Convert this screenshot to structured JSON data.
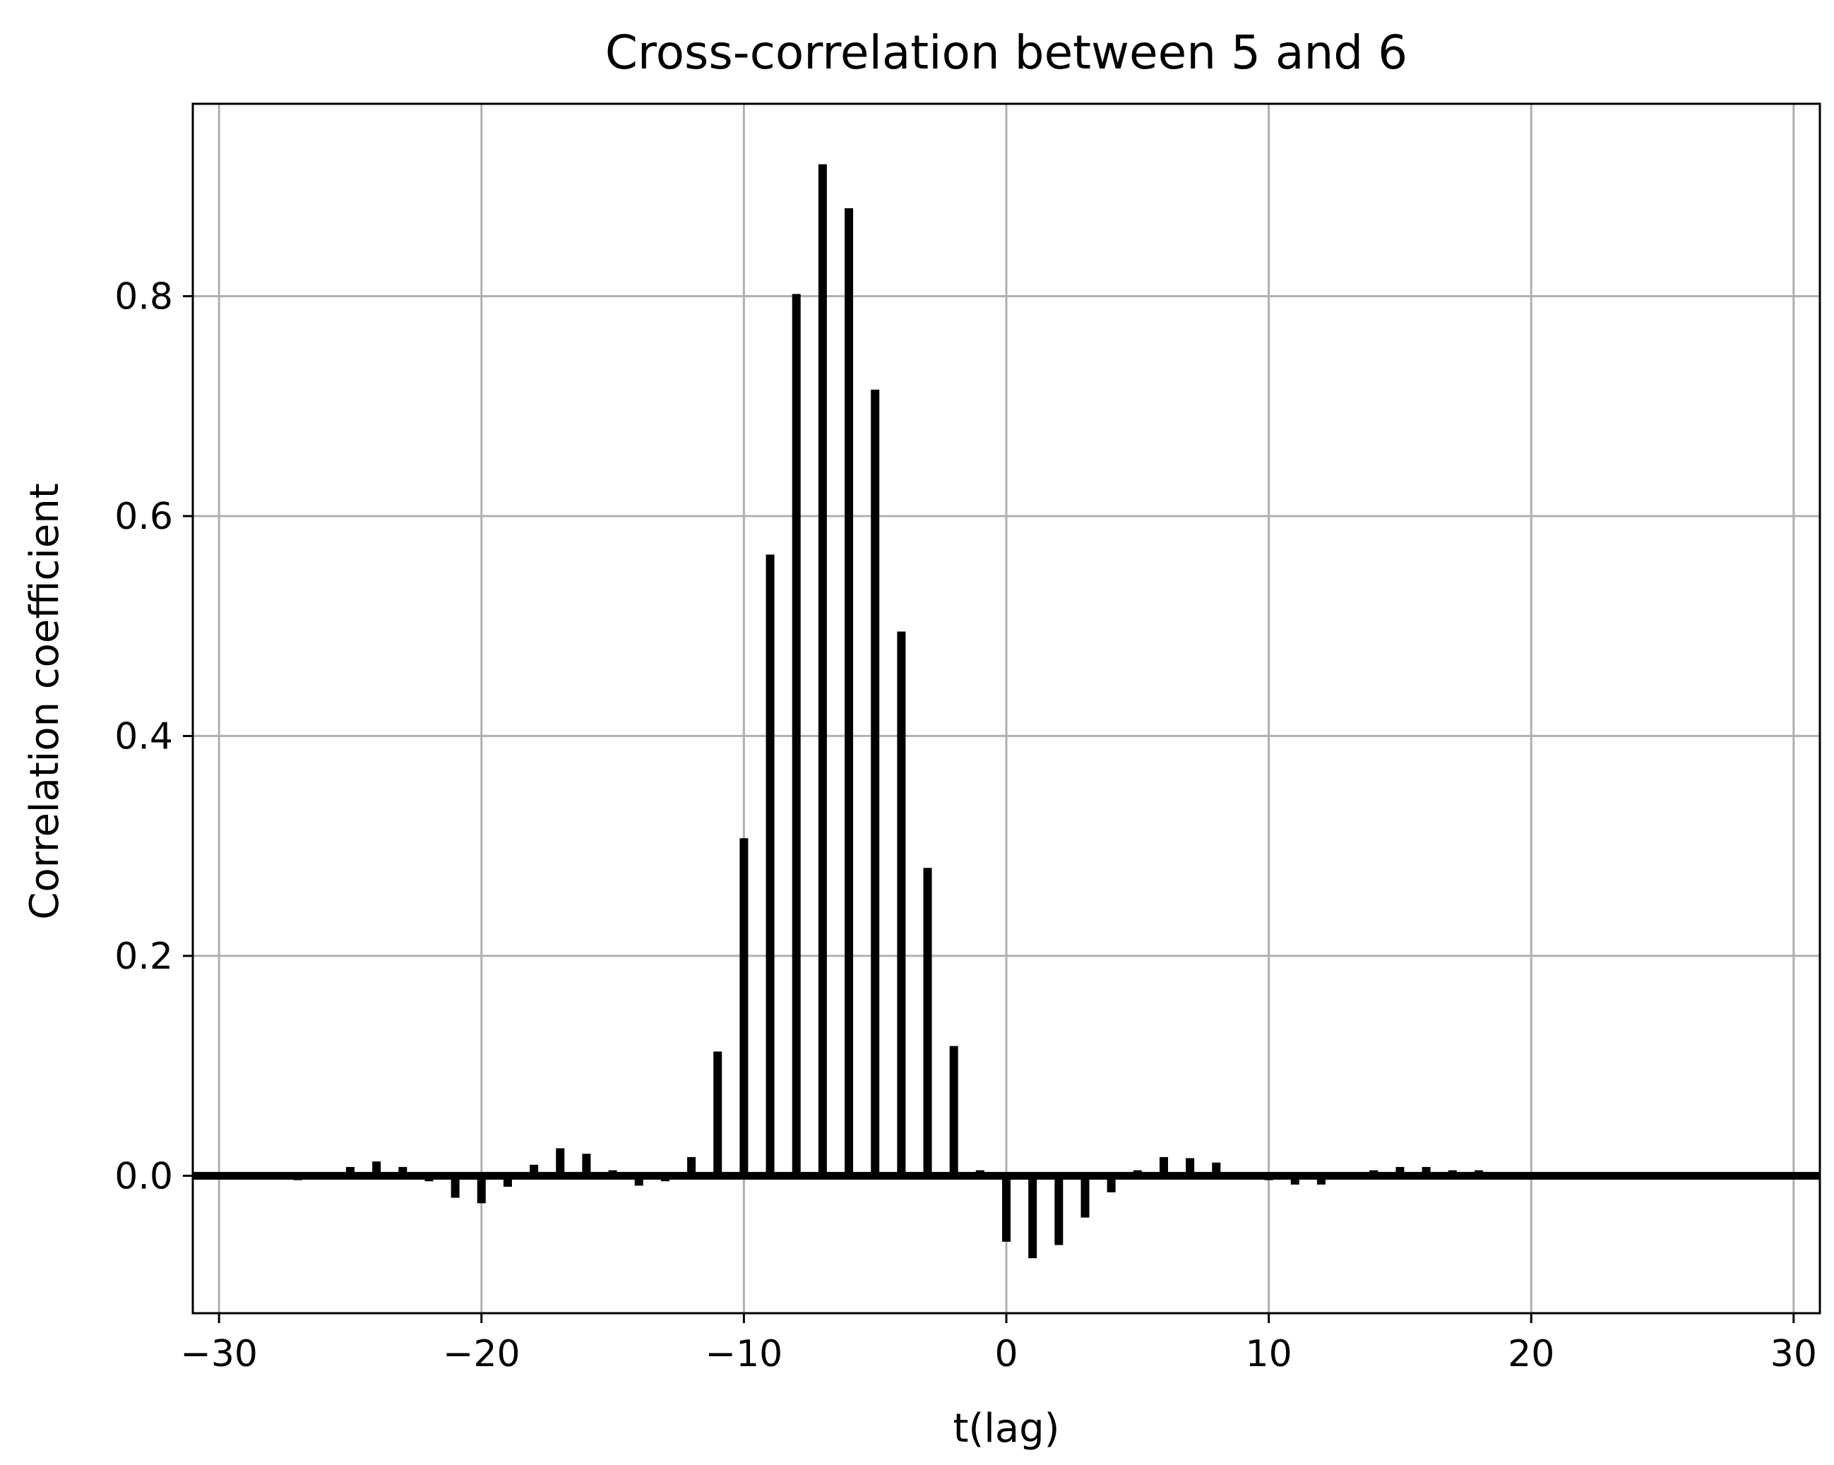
{
  "chart_data": {
    "type": "bar",
    "title": "Cross-correlation between 5 and 6",
    "xlabel": "t(lag)",
    "ylabel": "Correlation coefficient",
    "xlim": [
      -31,
      31
    ],
    "ylim": [
      -0.125,
      0.975
    ],
    "xticks": [
      -30,
      -20,
      -10,
      0,
      10,
      20,
      30
    ],
    "xtick_labels": [
      "−30",
      "−20",
      "−10",
      "0",
      "10",
      "20",
      "30"
    ],
    "yticks": [
      0.0,
      0.2,
      0.4,
      0.6,
      0.8
    ],
    "ytick_labels": [
      "0.0",
      "0.2",
      "0.4",
      "0.6",
      "0.8"
    ],
    "grid": true,
    "color": "#000000",
    "x": [
      -30,
      -29,
      -28,
      -27,
      -26,
      -25,
      -24,
      -23,
      -22,
      -21,
      -20,
      -19,
      -18,
      -17,
      -16,
      -15,
      -14,
      -13,
      -12,
      -11,
      -10,
      -9,
      -8,
      -7,
      -6,
      -5,
      -4,
      -3,
      -2,
      -1,
      0,
      1,
      2,
      3,
      4,
      5,
      6,
      7,
      8,
      9,
      10,
      11,
      12,
      13,
      14,
      15,
      16,
      17,
      18,
      19,
      20,
      21,
      22,
      23,
      24,
      25,
      26,
      27,
      28,
      29,
      30
    ],
    "values": [
      0.0,
      0.0,
      0.0,
      -0.004,
      0.0,
      0.008,
      0.013,
      0.008,
      -0.005,
      -0.02,
      -0.025,
      -0.01,
      0.01,
      0.025,
      0.02,
      0.005,
      -0.009,
      -0.005,
      0.017,
      0.113,
      0.307,
      0.565,
      0.802,
      0.92,
      0.88,
      0.715,
      0.495,
      0.28,
      0.118,
      0.005,
      -0.06,
      -0.075,
      -0.063,
      -0.038,
      -0.015,
      0.005,
      0.017,
      0.016,
      0.012,
      0.0,
      -0.004,
      -0.008,
      -0.008,
      0.0,
      0.005,
      0.008,
      0.008,
      0.005,
      0.005,
      0.0,
      0.0,
      0.0,
      0.0,
      0.0,
      0.0,
      0.0,
      0.0,
      0.0,
      0.0,
      0.0,
      0.0
    ]
  }
}
